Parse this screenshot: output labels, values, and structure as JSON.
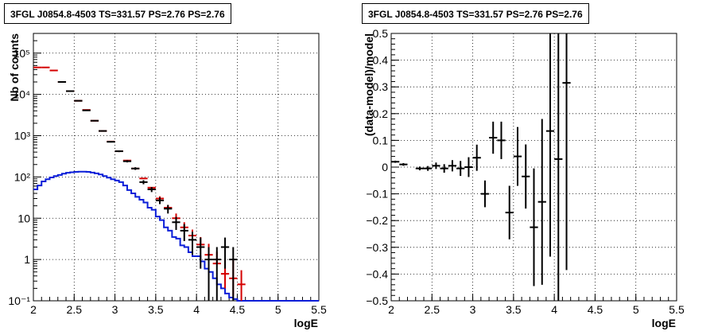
{
  "panels": {
    "left_title": "3FGL J0854.8-4503 TS=331.57 PS=2.76 PS=2.76",
    "right_title": "3FGL J0854.8-4503 TS=331.57 PS=2.76 PS=2.76"
  },
  "colors": {
    "data": "#000000",
    "model": "#d40000",
    "source": "#0a1ed8",
    "grid": "#000000"
  },
  "chart_data": [
    {
      "type": "scatter",
      "title": "3FGL J0854.8-4503 TS=331.57 PS=2.76 PS=2.76",
      "xlabel": "logE",
      "ylabel": "Nb of counts",
      "xlim": [
        2,
        5.5
      ],
      "ylim": [
        0.1,
        300000
      ],
      "yscale": "log",
      "grid": true,
      "x_ticks": [
        "2",
        "2.5",
        "3",
        "3.5",
        "4",
        "4.5",
        "5",
        "5.5"
      ],
      "y_tick_labels": [
        "10⁻¹",
        "1",
        "10",
        "10²",
        "10³",
        "10⁴",
        "10⁵"
      ],
      "y_tick_values": [
        0.1,
        1,
        10,
        100,
        1000,
        10000,
        100000
      ],
      "bin_width": 0.1,
      "series": [
        {
          "role": "model",
          "x": [
            2.05,
            2.15,
            2.25,
            2.35,
            2.45,
            2.55,
            2.65,
            2.75,
            2.85,
            2.95,
            3.05,
            3.15,
            3.25,
            3.35,
            3.45,
            3.55,
            3.65,
            3.75,
            3.85,
            3.95,
            4.05,
            4.15,
            4.25,
            4.35,
            4.45,
            4.55
          ],
          "y": [
            45000,
            45000,
            38000,
            20000,
            12000,
            7000,
            4200,
            2300,
            1300,
            720,
            420,
            250,
            160,
            92,
            55,
            30,
            18,
            10,
            6,
            3.8,
            2.3,
            1.3,
            0.8,
            0.45,
            0.35,
            0.25
          ],
          "err_low": [
            0,
            0,
            0,
            0,
            0,
            0,
            0,
            0,
            0,
            0,
            0,
            0,
            0,
            0,
            0,
            0,
            0,
            0,
            0,
            0,
            0,
            0,
            0,
            0.25,
            0.22,
            0.17
          ],
          "err_high": [
            0,
            0,
            0,
            0,
            0,
            0,
            0,
            0,
            0,
            0,
            0,
            0,
            0,
            0,
            0,
            4,
            3,
            3,
            2,
            1.5,
            1.2,
            1.1,
            0.75,
            0.6,
            0.7,
            0.3
          ]
        },
        {
          "role": "data",
          "x": [
            2.35,
            2.45,
            2.55,
            2.65,
            2.75,
            2.85,
            2.95,
            3.05,
            3.15,
            3.25,
            3.35,
            3.45,
            3.55,
            3.65,
            3.75,
            3.85,
            3.95,
            4.05,
            4.15,
            4.25,
            4.35,
            4.45
          ],
          "y": [
            20000,
            12000,
            7000,
            4100,
            2300,
            1300,
            710,
            420,
            240,
            160,
            75,
            50,
            27,
            17,
            8,
            5,
            3,
            2,
            1,
            1,
            2,
            1
          ],
          "err_low": [
            140,
            110,
            85,
            64,
            48,
            36,
            27,
            20,
            15,
            12,
            8.5,
            7,
            5,
            4,
            2.8,
            2.2,
            1.7,
            1.4,
            0.9,
            0.9,
            1.4,
            0.9
          ],
          "err_high": [
            140,
            110,
            85,
            64,
            48,
            36,
            27,
            20,
            15,
            12,
            8.5,
            7,
            5,
            4,
            2.8,
            2.2,
            1.7,
            1.4,
            1.0,
            1.0,
            1.4,
            1.0
          ]
        },
        {
          "role": "source",
          "bin_edges": [
            2.0,
            2.05,
            2.1,
            2.15,
            2.2,
            2.25,
            2.3,
            2.35,
            2.4,
            2.45,
            2.5,
            2.55,
            2.6,
            2.65,
            2.7,
            2.75,
            2.8,
            2.85,
            2.9,
            2.95,
            3.0,
            3.05,
            3.1,
            3.15,
            3.2,
            3.25,
            3.3,
            3.35,
            3.4,
            3.45,
            3.5,
            3.55,
            3.6,
            3.65,
            3.7,
            3.75,
            3.8,
            3.85,
            3.9,
            3.95,
            4.0,
            4.05,
            4.1,
            4.15,
            4.2,
            4.25,
            4.3,
            4.35,
            4.4,
            4.45,
            4.5,
            4.55,
            5.5
          ],
          "y": [
            50,
            62,
            78,
            88,
            97,
            105,
            112,
            120,
            126,
            130,
            133,
            134,
            134,
            133,
            128,
            122,
            115,
            105,
            96,
            88,
            82,
            75,
            62,
            48,
            40,
            33,
            28,
            24,
            18,
            16,
            11,
            9,
            6,
            5,
            3.5,
            3.2,
            2.2,
            2.0,
            1.5,
            1.2,
            1.2,
            0.9,
            0.6,
            0.5,
            0.35,
            0.25,
            0.2,
            0.15,
            0.12,
            0.11,
            0.1,
            0.1
          ]
        }
      ]
    },
    {
      "type": "scatter",
      "title": "3FGL J0854.8-4503 TS=331.57 PS=2.76 PS=2.76",
      "xlabel": "logE",
      "ylabel": "(data-model)/model",
      "xlim": [
        2,
        5.5
      ],
      "ylim": [
        -0.5,
        0.5
      ],
      "grid": true,
      "x_ticks": [
        "2",
        "2.5",
        "3",
        "3.5",
        "4",
        "4.5",
        "5",
        "5.5"
      ],
      "y_tick_labels": [
        "−0.5",
        "−0.4",
        "−0.3",
        "−0.2",
        "−0.1",
        "0",
        "0.1",
        "0.2",
        "0.3",
        "0.4",
        "0.5"
      ],
      "y_tick_values": [
        -0.5,
        -0.4,
        -0.3,
        -0.2,
        -0.1,
        0,
        0.1,
        0.2,
        0.3,
        0.4,
        0.5
      ],
      "series": [
        {
          "role": "data",
          "x": [
            2.05,
            2.15,
            2.35,
            2.45,
            2.55,
            2.65,
            2.75,
            2.85,
            2.95,
            3.05,
            3.15,
            3.25,
            3.35,
            3.45,
            3.55,
            3.65,
            3.75,
            3.85,
            3.95,
            4.05,
            4.15
          ],
          "y": [
            0.02,
            0.01,
            -0.005,
            -0.005,
            0.005,
            -0.005,
            0.005,
            -0.005,
            0.0,
            0.035,
            -0.1,
            0.11,
            0.1,
            -0.17,
            0.04,
            -0.035,
            -0.225,
            -0.13,
            0.135,
            0.03,
            0.315
          ],
          "err": [
            0.004,
            0.005,
            0.007,
            0.009,
            0.012,
            0.016,
            0.021,
            0.028,
            0.037,
            0.049,
            0.05,
            0.06,
            0.07,
            0.1,
            0.11,
            0.12,
            0.22,
            0.31,
            0.47,
            0.6,
            0.7
          ]
        }
      ]
    }
  ]
}
